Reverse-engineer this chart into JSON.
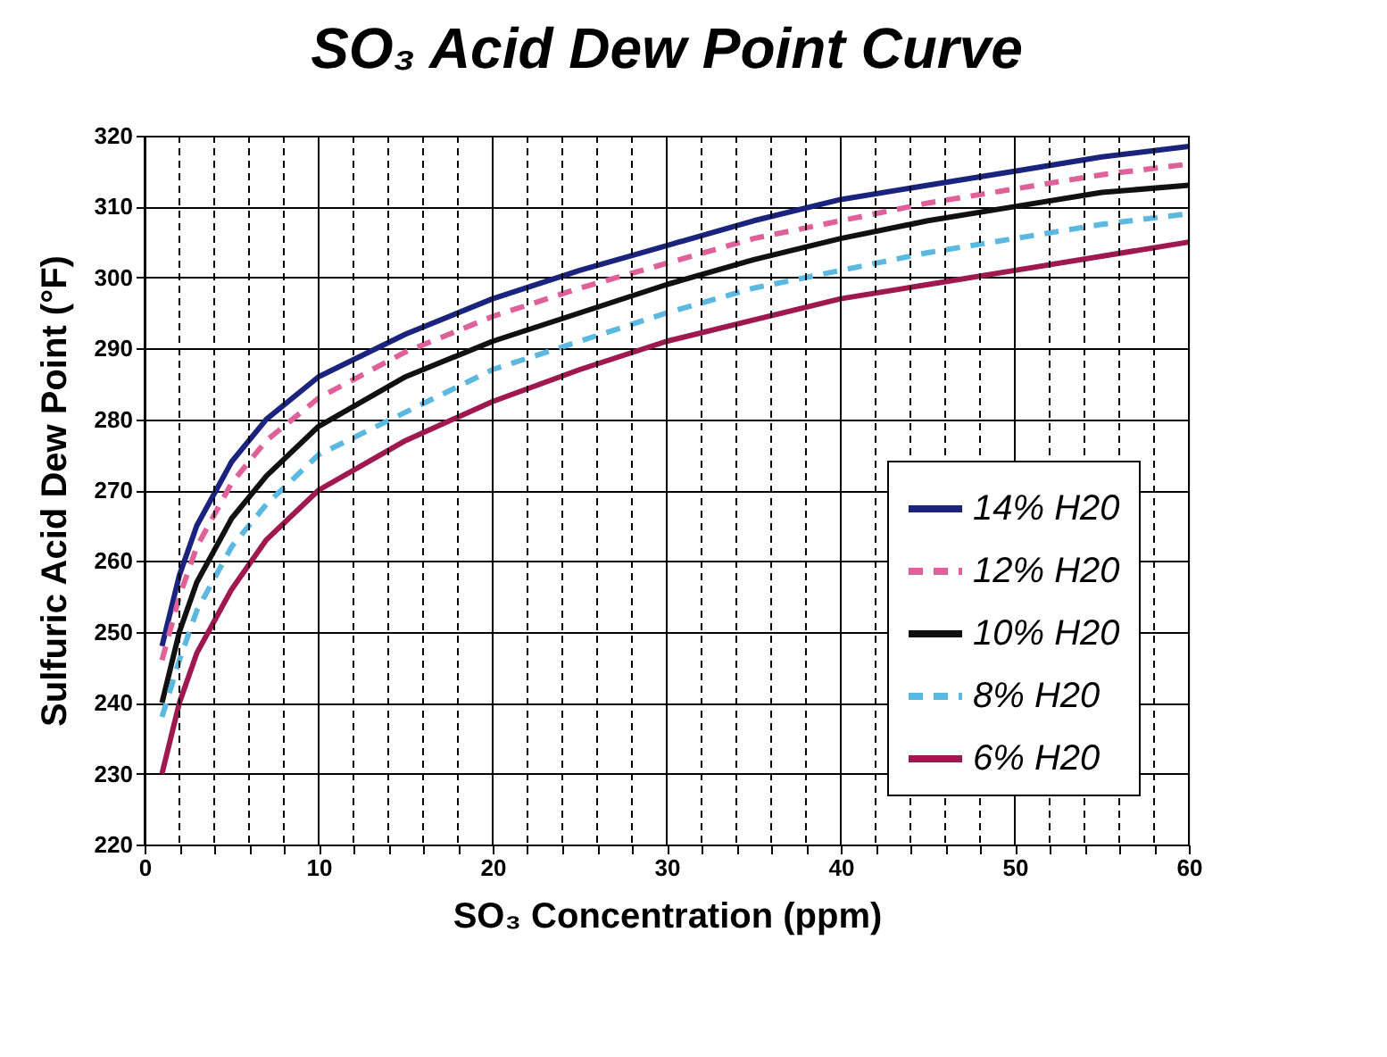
{
  "chart_data": {
    "type": "line",
    "title": "SO₃ Acid Dew Point Curve",
    "xlabel": "SO₃ Concentration (ppm)",
    "ylabel": "Sulfuric Acid Dew Point (°F)",
    "x": [
      1,
      2,
      3,
      5,
      7,
      10,
      15,
      20,
      25,
      30,
      35,
      40,
      45,
      50,
      55,
      60
    ],
    "series": [
      {
        "name": "14% H20",
        "color": "#1a237e",
        "line_style": "solid",
        "values": [
          248,
          258,
          265,
          274,
          280,
          286,
          292,
          297,
          301,
          304.5,
          308,
          311,
          313,
          315,
          317,
          318.5
        ]
      },
      {
        "name": "12% H20",
        "color": "#e0609a",
        "line_style": "dashed",
        "values": [
          246,
          255,
          262,
          271,
          277,
          283,
          289.5,
          294.5,
          298.5,
          302,
          305.5,
          308,
          310.5,
          312.5,
          314.5,
          316
        ]
      },
      {
        "name": "10% H20",
        "color": "#111111",
        "line_style": "solid",
        "values": [
          240,
          250,
          257,
          266,
          272,
          279,
          286,
          291,
          295,
          299,
          302.5,
          305.5,
          308,
          310,
          312,
          313
        ]
      },
      {
        "name": "8% H20",
        "color": "#5bb8e0",
        "line_style": "dashed",
        "values": [
          238,
          246,
          253,
          262,
          268,
          275,
          281,
          287,
          291,
          295,
          298.5,
          301,
          303.5,
          305.5,
          307.5,
          309
        ]
      },
      {
        "name": "6% H20",
        "color": "#a01850",
        "line_style": "solid",
        "values": [
          230,
          240,
          247,
          256,
          263,
          270,
          277,
          282.5,
          287,
          291,
          294,
          297,
          299,
          301,
          303,
          305
        ]
      }
    ],
    "xlim": [
      0,
      60
    ],
    "ylim": [
      220,
      320
    ],
    "xticks": [
      0,
      {
        "value": 2,
        "label": null
      },
      {
        "value": 4,
        "label": null
      },
      {
        "value": 6,
        "label": null
      },
      {
        "value": 8,
        "label": null
      },
      10,
      {
        "value": 12,
        "label": null
      },
      {
        "value": 14,
        "label": null
      },
      {
        "value": 16,
        "label": null
      },
      {
        "value": 18,
        "label": null
      },
      20,
      {
        "value": 22,
        "label": null
      },
      {
        "value": 24,
        "label": null
      },
      {
        "value": 26,
        "label": null
      },
      {
        "value": 28,
        "label": null
      },
      30,
      {
        "value": 32,
        "label": null
      },
      {
        "value": 34,
        "label": null
      },
      {
        "value": 36,
        "label": null
      },
      {
        "value": 38,
        "label": null
      },
      40,
      {
        "value": 42,
        "label": null
      },
      {
        "value": 44,
        "label": null
      },
      {
        "value": 46,
        "label": null
      },
      {
        "value": 48,
        "label": null
      },
      50,
      {
        "value": 52,
        "label": null
      },
      {
        "value": 54,
        "label": null
      },
      {
        "value": 56,
        "label": null
      },
      {
        "value": 58,
        "label": null
      },
      60
    ],
    "yticks": [
      220,
      230,
      240,
      250,
      260,
      270,
      280,
      290,
      300,
      310,
      320
    ],
    "grid": true,
    "legend": "bottom right",
    "marker": "none"
  }
}
